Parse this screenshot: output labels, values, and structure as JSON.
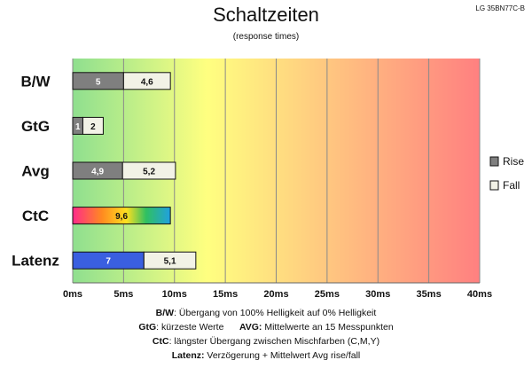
{
  "header": {
    "title": "Schaltzeiten",
    "subtitle": "(response times)",
    "model": "LG 35BN77C-B"
  },
  "colors": {
    "rise": "#7f7f7f",
    "fall": "#f2f2e6",
    "latenz_rise": "#3a5fe0",
    "bg_gradient": [
      "#8fdf8f",
      "#ffff80",
      "#ff8080"
    ]
  },
  "chart_data": {
    "type": "bar",
    "orientation": "horizontal",
    "stacked": true,
    "title": "Schaltzeiten",
    "subtitle": "(response times)",
    "categories": [
      "B/W",
      "GtG",
      "Avg",
      "CtC",
      "Latenz"
    ],
    "series": [
      {
        "name": "Rise",
        "values": [
          5,
          1,
          4.9,
          9.6,
          7
        ],
        "labels": [
          "5",
          "1",
          "4,9",
          "9,6",
          "7"
        ]
      },
      {
        "name": "Fall",
        "values": [
          4.6,
          2,
          5.2,
          null,
          5.1
        ],
        "labels": [
          "4,6",
          "2",
          "5,2",
          "",
          "5,1"
        ]
      }
    ],
    "xlim": [
      0,
      40
    ],
    "xticks": [
      "0ms",
      "5ms",
      "10ms",
      "15ms",
      "20ms",
      "25ms",
      "30ms",
      "35ms",
      "40ms"
    ],
    "grid": true,
    "legend_position": "right"
  },
  "notes": {
    "line1_key": "B/W",
    "line1_text": ":  Übergang von 100% Helligkeit auf 0% Helligkeit",
    "line2_key1": "GtG",
    "line2_text1": ": kürzeste  Werte",
    "line2_key2": "AVG:",
    "line2_text2": " Mittelwerte  an 15 Messpunkten",
    "line3_key": "CtC",
    "line3_text": ": längster Übergang  zwischen Mischfarben (C,M,Y)",
    "line4_key": "Latenz:",
    "line4_text": " Verzögerung  + Mittelwert Avg rise/fall"
  }
}
